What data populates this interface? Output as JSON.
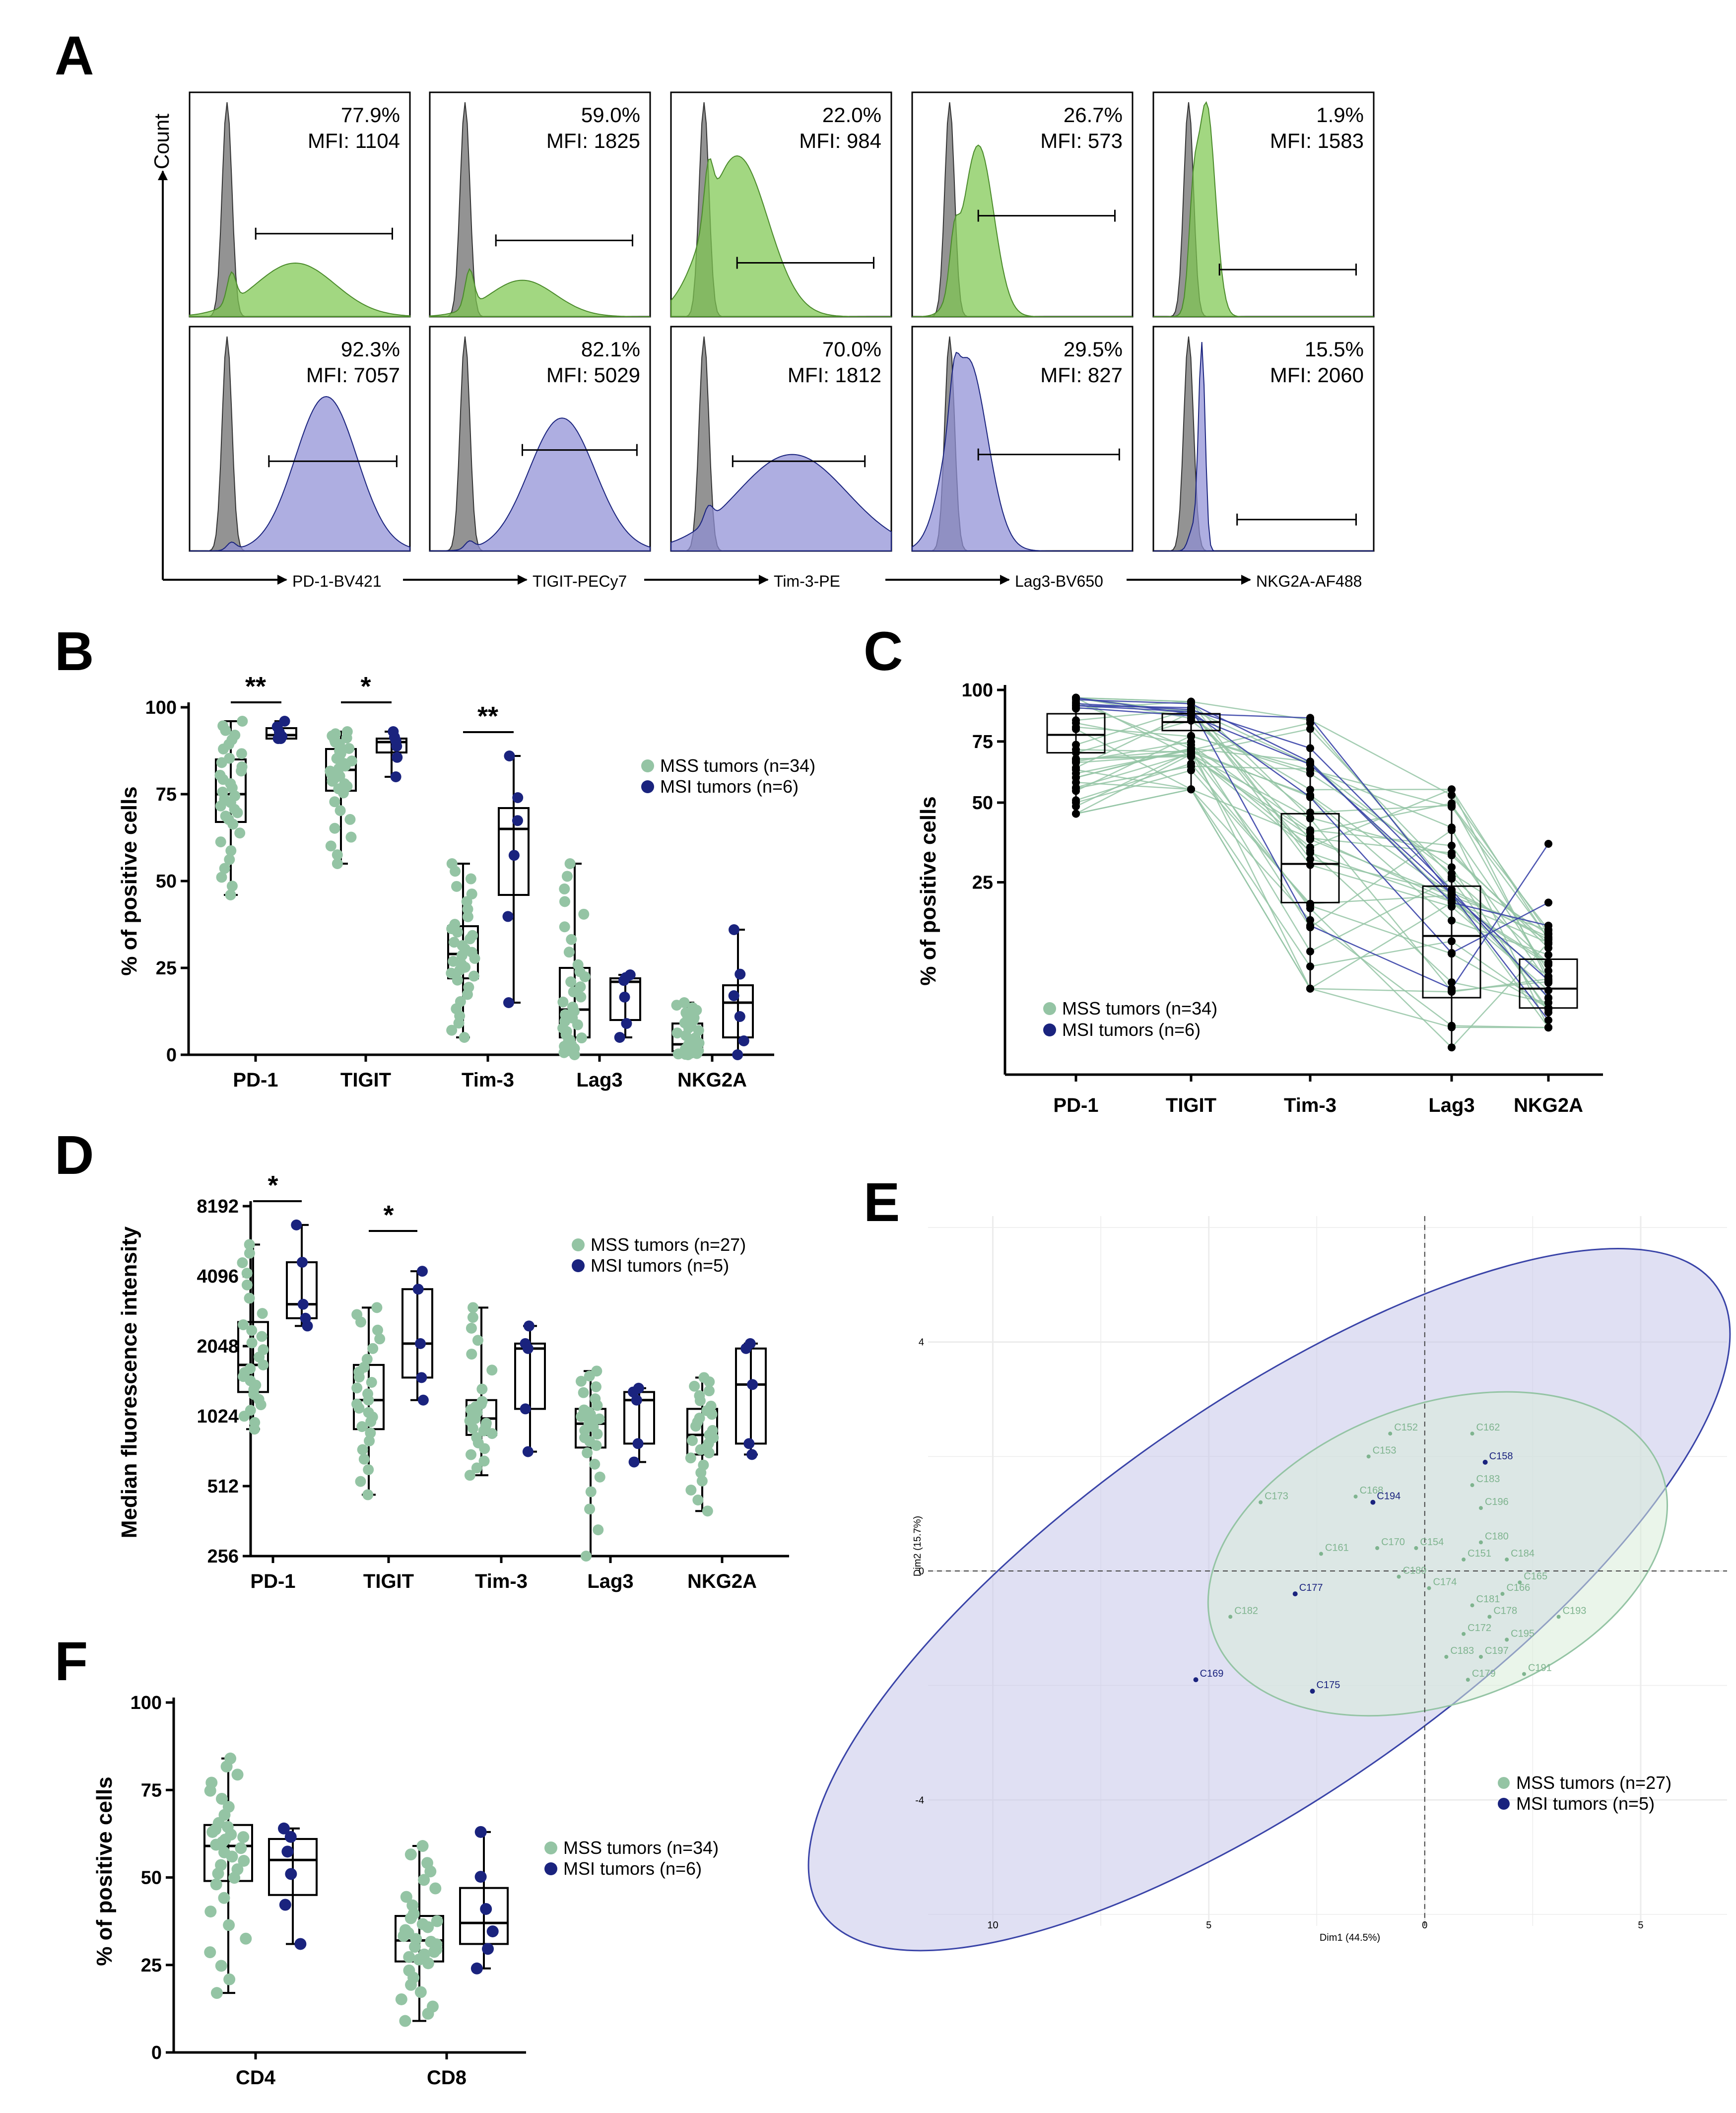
{
  "panel_labels": [
    "A",
    "B",
    "C",
    "D",
    "E",
    "F"
  ],
  "colors": {
    "mss": "#94c4a4",
    "msi": "#1a237e",
    "iso": "#808080",
    "msi_fill": "#8f8fd6",
    "mss_fill": "#7ec850",
    "overlap": "#3f6b2c"
  },
  "legend": {
    "mss_34": "MSS tumors (n=34)",
    "msi_6": "MSI tumors (n=6)",
    "mss_27": "MSS tumors (n=27)",
    "msi_5": "MSI tumors (n=5)"
  },
  "chart_data": [
    {
      "panel": "A",
      "type": "histogram",
      "ylabel": "Count",
      "markers": [
        "PD-1-BV421",
        "TIGIT-PECy7",
        "Tim-3-PE",
        "Lag3-BV650",
        "NKG2A-AF488"
      ],
      "mss_row": [
        {
          "pct": "77.9%",
          "mfi": "MFI: 1104"
        },
        {
          "pct": "59.0%",
          "mfi": "MFI: 1825"
        },
        {
          "pct": "22.0%",
          "mfi": "MFI: 984"
        },
        {
          "pct": "26.7%",
          "mfi": "MFI: 573"
        },
        {
          "pct": "1.9%",
          "mfi": "MFI: 1583"
        }
      ],
      "msi_row": [
        {
          "pct": "92.3%",
          "mfi": "MFI: 7057"
        },
        {
          "pct": "82.1%",
          "mfi": "MFI: 5029"
        },
        {
          "pct": "70.0%",
          "mfi": "MFI: 1812"
        },
        {
          "pct": "29.5%",
          "mfi": "MFI: 827"
        },
        {
          "pct": "15.5%",
          "mfi": "MFI: 2060"
        }
      ]
    },
    {
      "panel": "B",
      "type": "box",
      "ylabel": "% of positive cells",
      "ylim": [
        0,
        100
      ],
      "yticks": [
        0,
        25,
        50,
        75,
        100
      ],
      "categories": [
        "PD-1",
        "TIGIT",
        "Tim-3",
        "Lag3",
        "NKG2A"
      ],
      "significance": [
        "**",
        "*",
        "**",
        "",
        ""
      ],
      "mss": [
        {
          "min": 46,
          "q1": 67,
          "med": 75,
          "q3": 85,
          "max": 96
        },
        {
          "min": 55,
          "q1": 76,
          "med": 82,
          "q3": 88,
          "max": 93
        },
        {
          "min": 5,
          "q1": 22,
          "med": 29,
          "q3": 37,
          "max": 55
        },
        {
          "min": 0,
          "q1": 5,
          "med": 13,
          "q3": 25,
          "max": 55
        },
        {
          "min": 0,
          "q1": 1,
          "med": 3,
          "q3": 9,
          "max": 15
        }
      ],
      "msi": [
        {
          "min": 91,
          "q1": 91,
          "med": 92,
          "q3": 94,
          "max": 96
        },
        {
          "min": 80,
          "q1": 87,
          "med": 90,
          "q3": 91,
          "max": 93
        },
        {
          "min": 15,
          "q1": 46,
          "med": 65,
          "q3": 71,
          "max": 86
        },
        {
          "min": 5,
          "q1": 10,
          "med": 21,
          "q3": 22,
          "max": 23
        },
        {
          "min": 0,
          "q1": 5,
          "med": 15,
          "q3": 20,
          "max": 36
        }
      ]
    },
    {
      "panel": "C",
      "type": "box",
      "ylabel": "% of positive cells",
      "yticks": [
        25,
        50,
        75,
        100
      ],
      "scale": "sqrt",
      "categories": [
        "PD-1",
        "TIGIT",
        "Tim-3",
        "Lag3",
        "NKG2A"
      ],
      "boxes": [
        {
          "min": 46,
          "q1": 70,
          "med": 78,
          "q3": 88,
          "max": 96
        },
        {
          "min": 55,
          "q1": 80,
          "med": 84,
          "q3": 88,
          "max": 94
        },
        {
          "min": 5,
          "q1": 20,
          "med": 30,
          "q3": 46,
          "max": 85
        },
        {
          "min": 0.5,
          "q1": 4,
          "med": 13,
          "q3": 24,
          "max": 55
        },
        {
          "min": 1.5,
          "q1": 3,
          "med": 5,
          "q3": 9,
          "max": 15
        }
      ],
      "msi_lines": [
        [
          93,
          90,
          72,
          23,
          4
        ],
        [
          95,
          93,
          66,
          20,
          15
        ],
        [
          91,
          87,
          65,
          22,
          6
        ],
        [
          92,
          89,
          52,
          10,
          20
        ],
        [
          92,
          91,
          15,
          5,
          36
        ],
        [
          96,
          88,
          86,
          22,
          2
        ]
      ]
    },
    {
      "panel": "D",
      "type": "box",
      "ylabel": "Median fluorescence intensity",
      "scale": "log2",
      "yticks": [
        256,
        512,
        1024,
        2048,
        4096,
        8192
      ],
      "categories": [
        "PD-1",
        "TIGIT",
        "Tim-3",
        "Lag3",
        "NKG2A"
      ],
      "significance": [
        "*",
        "*",
        "",
        "",
        ""
      ],
      "mss": [
        {
          "min": 900,
          "q1": 1300,
          "med": 1700,
          "q3": 2600,
          "max": 5600
        },
        {
          "min": 470,
          "q1": 900,
          "med": 1200,
          "q3": 1700,
          "max": 3000
        },
        {
          "min": 570,
          "q1": 850,
          "med": 1000,
          "q3": 1200,
          "max": 3000
        },
        {
          "min": 256,
          "q1": 750,
          "med": 950,
          "q3": 1100,
          "max": 1600
        },
        {
          "min": 400,
          "q1": 700,
          "med": 850,
          "q3": 1100,
          "max": 1500
        }
      ],
      "msi": [
        {
          "min": 2500,
          "q1": 2700,
          "med": 3100,
          "q3": 4700,
          "max": 6800
        },
        {
          "min": 1200,
          "q1": 1500,
          "med": 2100,
          "q3": 3600,
          "max": 4300
        },
        {
          "min": 720,
          "q1": 1100,
          "med": 2000,
          "q3": 2100,
          "max": 2500
        },
        {
          "min": 650,
          "q1": 780,
          "med": 1200,
          "q3": 1300,
          "max": 1350
        },
        {
          "min": 700,
          "q1": 780,
          "med": 1400,
          "q3": 2000,
          "max": 2100
        }
      ]
    },
    {
      "panel": "E",
      "type": "scatter",
      "xlabel": "Dim1 (44.5%)",
      "ylabel": "Dim2 (15.7%)",
      "xticks": [
        -10,
        -5,
        0,
        5
      ],
      "xticklabels": [
        "10",
        "5",
        "0",
        "5"
      ],
      "yticks": [
        -4,
        0,
        4
      ],
      "yticklabels": [
        "-4",
        "0",
        "4"
      ],
      "xlim": [
        -11.5,
        7
      ],
      "ylim": [
        -6.2,
        6.2
      ],
      "mss_points": [
        {
          "label": "C162",
          "x": 1.1,
          "y": 2.4
        },
        {
          "label": "C152",
          "x": -0.8,
          "y": 2.4
        },
        {
          "label": "C153",
          "x": -1.3,
          "y": 2.0
        },
        {
          "label": "C183",
          "x": 1.1,
          "y": 1.5
        },
        {
          "label": "C168",
          "x": -1.6,
          "y": 1.3
        },
        {
          "label": "C196",
          "x": 1.3,
          "y": 1.1
        },
        {
          "label": "C173",
          "x": -3.8,
          "y": 1.2
        },
        {
          "label": "C180",
          "x": 1.3,
          "y": 0.5
        },
        {
          "label": "C170",
          "x": -1.1,
          "y": 0.4
        },
        {
          "label": "C154",
          "x": -0.2,
          "y": 0.4
        },
        {
          "label": "C151",
          "x": 0.9,
          "y": 0.2
        },
        {
          "label": "C184",
          "x": 1.9,
          "y": 0.2
        },
        {
          "label": "C161",
          "x": -2.4,
          "y": 0.3
        },
        {
          "label": "C165",
          "x": 2.2,
          "y": -0.2
        },
        {
          "label": "C189",
          "x": -0.6,
          "y": -0.1
        },
        {
          "label": "C174",
          "x": 0.1,
          "y": -0.3
        },
        {
          "label": "C166",
          "x": 1.8,
          "y": -0.4
        },
        {
          "label": "C181",
          "x": 1.1,
          "y": -0.6
        },
        {
          "label": "C178",
          "x": 1.5,
          "y": -0.8
        },
        {
          "label": "C193",
          "x": 3.1,
          "y": -0.8
        },
        {
          "label": "C172",
          "x": 0.9,
          "y": -1.1
        },
        {
          "label": "C195",
          "x": 1.9,
          "y": -1.2
        },
        {
          "label": "C183",
          "x": 0.5,
          "y": -1.5
        },
        {
          "label": "C197",
          "x": 1.3,
          "y": -1.5
        },
        {
          "label": "C191",
          "x": 2.3,
          "y": -1.8
        },
        {
          "label": "C179",
          "x": 1.0,
          "y": -1.9
        },
        {
          "label": "C182",
          "x": -4.5,
          "y": -0.8
        }
      ],
      "msi_points": [
        {
          "label": "C158",
          "x": 1.4,
          "y": 1.9
        },
        {
          "label": "C194",
          "x": -1.2,
          "y": 1.2
        },
        {
          "label": "C177",
          "x": -3.0,
          "y": -0.4
        },
        {
          "label": "C175",
          "x": -2.6,
          "y": -2.1
        },
        {
          "label": "C169",
          "x": -5.3,
          "y": -1.9
        }
      ]
    },
    {
      "panel": "F",
      "type": "box",
      "ylabel": "% of positive cells",
      "ylim": [
        0,
        100
      ],
      "yticks": [
        0,
        25,
        50,
        75,
        100
      ],
      "categories": [
        "CD4",
        "CD8"
      ],
      "mss": [
        {
          "min": 17,
          "q1": 49,
          "med": 59,
          "q3": 65,
          "max": 84
        },
        {
          "min": 9,
          "q1": 26,
          "med": 32,
          "q3": 39,
          "max": 59
        }
      ],
      "msi": [
        {
          "min": 31,
          "q1": 45,
          "med": 55,
          "q3": 61,
          "max": 64
        },
        {
          "min": 24,
          "q1": 31,
          "med": 37,
          "q3": 47,
          "max": 63
        }
      ]
    }
  ]
}
